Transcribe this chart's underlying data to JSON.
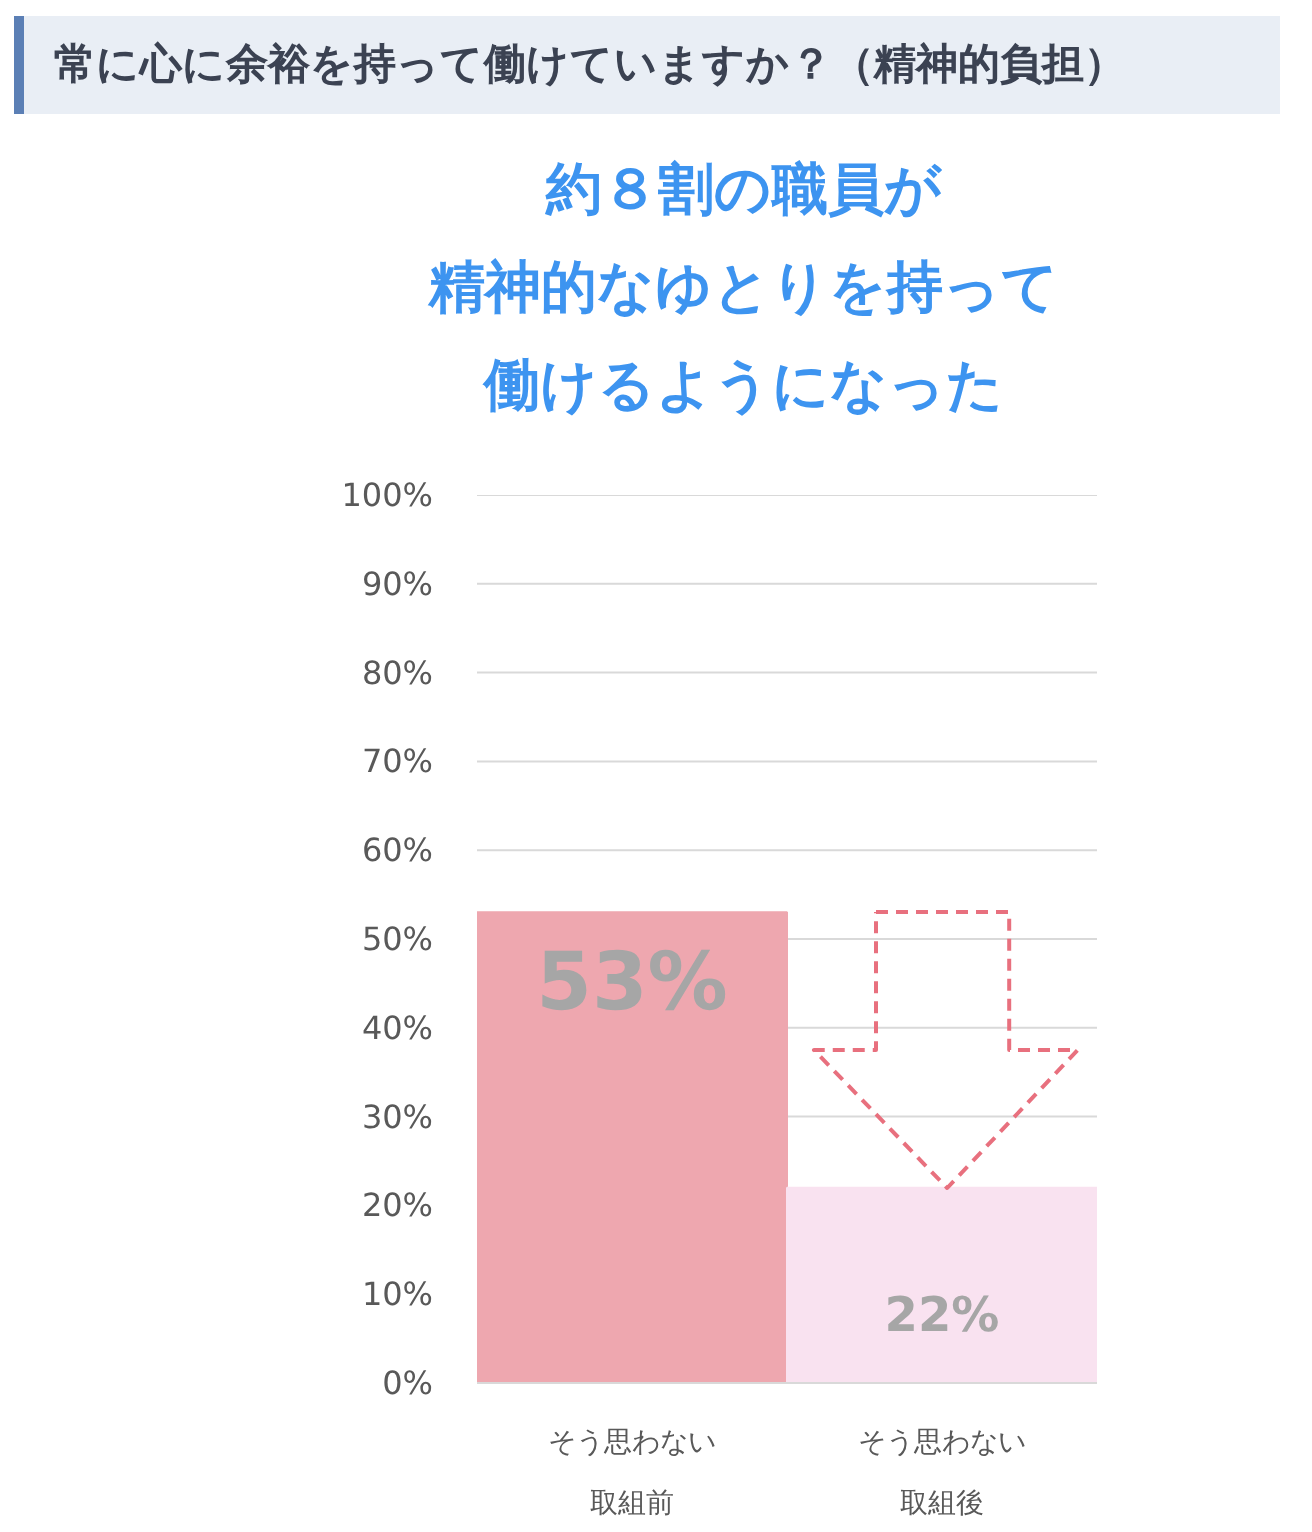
{
  "chart_data": {
    "type": "bar",
    "title": "常に心に余裕を持って働けていますか？（精神的負担）",
    "subtitle": "約８割の職員が精神的なゆとりを持って働けるようになった",
    "categories": [
      "そう思わない取組前",
      "そう思わない取組後"
    ],
    "values": [
      53,
      22
    ],
    "colors": [
      "#eea7af",
      "#f9e2f0"
    ],
    "value_labels": [
      "53%",
      "22%"
    ],
    "ylim": [
      0,
      100
    ],
    "yticks": [
      {
        "value": 0,
        "label": "0%"
      },
      {
        "value": 10,
        "label": "10%"
      },
      {
        "value": 20,
        "label": "20%"
      },
      {
        "value": 30,
        "label": "30%"
      },
      {
        "value": 40,
        "label": "40%"
      },
      {
        "value": 50,
        "label": "50%"
      },
      {
        "value": 60,
        "label": "60%"
      },
      {
        "value": 70,
        "label": "70%"
      },
      {
        "value": 80,
        "label": "80%"
      },
      {
        "value": 90,
        "label": "90%"
      },
      {
        "value": 100,
        "label": "100%"
      }
    ],
    "grid": "y"
  }
}
